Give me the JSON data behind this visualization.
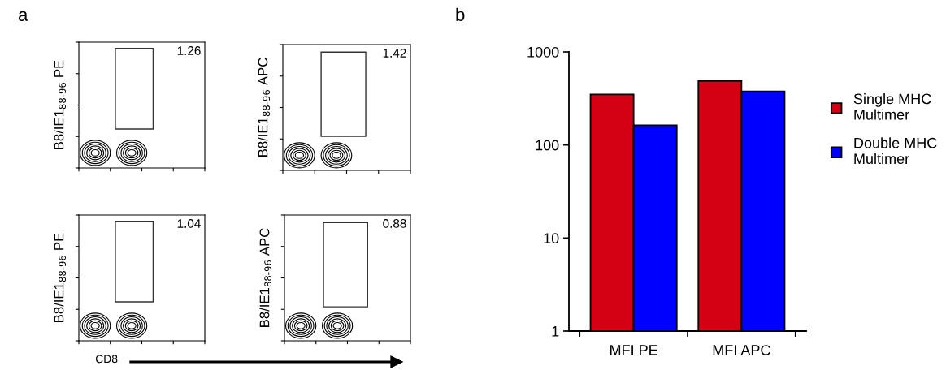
{
  "chart_data": [
    {
      "type": "other",
      "title": "a",
      "ylabel": "B8/IE1$_{88-96}$ PE",
      "annotations": [
        "1.26"
      ]
    },
    {
      "type": "other",
      "ylabel": "B8/IE1$_{88-96}$ APC",
      "annotations": [
        "1.42"
      ]
    },
    {
      "type": "other",
      "ylabel": "B8/IE1$_{88-96}$ PE",
      "xlabel": "CD8",
      "annotations": [
        "1.04"
      ]
    },
    {
      "type": "other",
      "ylabel": "B8/IE1$_{88-96}$ APC",
      "annotations": [
        "0.88"
      ]
    },
    {
      "type": "bar",
      "title": "b",
      "categories": [
        "MFI PE",
        "MFI APC"
      ],
      "log": true,
      "ylim": [
        1,
        1000
      ],
      "yticks": [
        1,
        10,
        100,
        1000
      ],
      "grid": false,
      "legend": "right",
      "series": [
        {
          "name": "Single MHC\nMultimer",
          "color": "#d40014",
          "values": [
            348,
            486
          ]
        },
        {
          "name": "Double MHC\nMultimer",
          "color": "#0000ff",
          "values": [
            162,
            375
          ]
        }
      ]
    }
  ]
}
